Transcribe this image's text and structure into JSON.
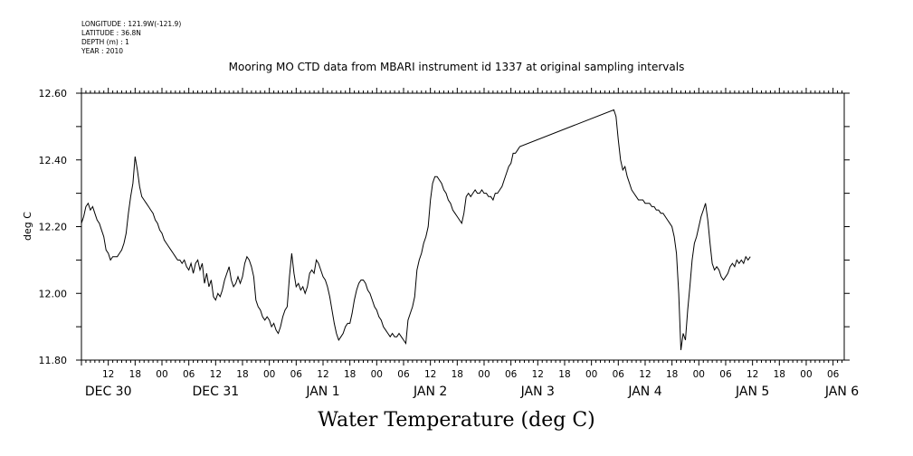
{
  "header": {
    "longitude": "LONGITUDE : 121.9W(-121.9)",
    "latitude": "LATITUDE : 36.8N",
    "depth": "DEPTH (m) : 1",
    "year": "YEAR : 2010"
  },
  "chart_data": {
    "type": "line",
    "title": "Mooring MO CTD data from MBARI instrument id 1337 at original sampling intervals",
    "xlabel": "Water Temperature (deg C)",
    "ylabel": "deg C",
    "ylim": [
      11.8,
      12.6
    ],
    "yticks": [
      "11.80",
      "12.00",
      "12.20",
      "12.40",
      "12.60"
    ],
    "x_units": "hours since 2009-12-29 06:00",
    "xlim": [
      0,
      170.5
    ],
    "hour_ticks": [
      {
        "x": 6,
        "label": "12"
      },
      {
        "x": 12,
        "label": "18"
      },
      {
        "x": 18,
        "label": "00"
      },
      {
        "x": 24,
        "label": "06"
      },
      {
        "x": 30,
        "label": "12"
      },
      {
        "x": 36,
        "label": "18"
      },
      {
        "x": 42,
        "label": "00"
      },
      {
        "x": 48,
        "label": "06"
      },
      {
        "x": 54,
        "label": "12"
      },
      {
        "x": 60,
        "label": "18"
      },
      {
        "x": 66,
        "label": "00"
      },
      {
        "x": 72,
        "label": "06"
      },
      {
        "x": 78,
        "label": "12"
      },
      {
        "x": 84,
        "label": "18"
      },
      {
        "x": 90,
        "label": "00"
      },
      {
        "x": 96,
        "label": "06"
      },
      {
        "x": 102,
        "label": "12"
      },
      {
        "x": 108,
        "label": "18"
      },
      {
        "x": 114,
        "label": "00"
      },
      {
        "x": 120,
        "label": "06"
      },
      {
        "x": 126,
        "label": "12"
      },
      {
        "x": 132,
        "label": "18"
      },
      {
        "x": 138,
        "label": "00"
      },
      {
        "x": 144,
        "label": "06"
      },
      {
        "x": 150,
        "label": "12"
      },
      {
        "x": 156,
        "label": "18"
      },
      {
        "x": 162,
        "label": "00"
      },
      {
        "x": 168,
        "label": "06"
      }
    ],
    "day_labels": [
      {
        "x": 6,
        "label": "DEC 30"
      },
      {
        "x": 30,
        "label": "DEC 31"
      },
      {
        "x": 54,
        "label": "JAN  1"
      },
      {
        "x": 78,
        "label": "JAN  2"
      },
      {
        "x": 102,
        "label": "JAN  3"
      },
      {
        "x": 126,
        "label": "JAN  4"
      },
      {
        "x": 150,
        "label": "JAN  5"
      },
      {
        "x": 170,
        "label": "JAN  6"
      }
    ],
    "series": [
      {
        "color": "#000000",
        "points": [
          [
            0,
            12.21
          ],
          [
            0.5,
            12.23
          ],
          [
            1,
            12.26
          ],
          [
            1.5,
            12.27
          ],
          [
            2,
            12.25
          ],
          [
            2.5,
            12.26
          ],
          [
            3,
            12.24
          ],
          [
            3.5,
            12.22
          ],
          [
            4,
            12.21
          ],
          [
            4.5,
            12.19
          ],
          [
            5,
            12.17
          ],
          [
            5.5,
            12.13
          ],
          [
            6,
            12.12
          ],
          [
            6.5,
            12.1
          ],
          [
            7,
            12.11
          ],
          [
            7.5,
            12.11
          ],
          [
            8,
            12.11
          ],
          [
            8.5,
            12.12
          ],
          [
            9,
            12.13
          ],
          [
            9.5,
            12.15
          ],
          [
            10,
            12.18
          ],
          [
            10.5,
            12.24
          ],
          [
            11,
            12.29
          ],
          [
            11.5,
            12.33
          ],
          [
            12,
            12.41
          ],
          [
            12.5,
            12.37
          ],
          [
            13,
            12.32
          ],
          [
            13.5,
            12.29
          ],
          [
            14,
            12.28
          ],
          [
            14.5,
            12.27
          ],
          [
            15,
            12.26
          ],
          [
            15.5,
            12.25
          ],
          [
            16,
            12.24
          ],
          [
            16.5,
            12.22
          ],
          [
            17,
            12.21
          ],
          [
            17.5,
            12.19
          ],
          [
            18,
            12.18
          ],
          [
            18.5,
            12.16
          ],
          [
            19,
            12.15
          ],
          [
            19.5,
            12.14
          ],
          [
            20,
            12.13
          ],
          [
            20.5,
            12.12
          ],
          [
            21,
            12.11
          ],
          [
            21.5,
            12.1
          ],
          [
            22,
            12.1
          ],
          [
            22.5,
            12.09
          ],
          [
            23,
            12.1
          ],
          [
            23.5,
            12.08
          ],
          [
            24,
            12.07
          ],
          [
            24.5,
            12.09
          ],
          [
            25,
            12.06
          ],
          [
            25.5,
            12.09
          ],
          [
            26,
            12.1
          ],
          [
            26.5,
            12.07
          ],
          [
            27,
            12.09
          ],
          [
            27.5,
            12.03
          ],
          [
            28,
            12.06
          ],
          [
            28.5,
            12.02
          ],
          [
            29,
            12.04
          ],
          [
            29.5,
            11.99
          ],
          [
            30,
            11.98
          ],
          [
            30.5,
            12.0
          ],
          [
            31,
            11.99
          ],
          [
            31.5,
            12.01
          ],
          [
            32,
            12.04
          ],
          [
            32.5,
            12.06
          ],
          [
            33,
            12.08
          ],
          [
            33.5,
            12.04
          ],
          [
            34,
            12.02
          ],
          [
            34.5,
            12.03
          ],
          [
            35,
            12.05
          ],
          [
            35.5,
            12.03
          ],
          [
            36,
            12.05
          ],
          [
            36.5,
            12.09
          ],
          [
            37,
            12.11
          ],
          [
            37.5,
            12.1
          ],
          [
            38,
            12.08
          ],
          [
            38.5,
            12.05
          ],
          [
            39,
            11.98
          ],
          [
            39.5,
            11.96
          ],
          [
            40,
            11.95
          ],
          [
            40.5,
            11.93
          ],
          [
            41,
            11.92
          ],
          [
            41.5,
            11.93
          ],
          [
            42,
            11.92
          ],
          [
            42.5,
            11.9
          ],
          [
            43,
            11.91
          ],
          [
            43.5,
            11.89
          ],
          [
            44,
            11.88
          ],
          [
            44.5,
            11.9
          ],
          [
            45,
            11.93
          ],
          [
            45.5,
            11.95
          ],
          [
            46,
            11.96
          ],
          [
            46.5,
            12.05
          ],
          [
            47,
            12.12
          ],
          [
            47.5,
            12.06
          ],
          [
            48,
            12.02
          ],
          [
            48.5,
            12.03
          ],
          [
            49,
            12.01
          ],
          [
            49.5,
            12.02
          ],
          [
            50,
            12.0
          ],
          [
            50.5,
            12.02
          ],
          [
            51,
            12.06
          ],
          [
            51.5,
            12.07
          ],
          [
            52,
            12.06
          ],
          [
            52.5,
            12.1
          ],
          [
            53,
            12.09
          ],
          [
            53.5,
            12.07
          ],
          [
            54,
            12.05
          ],
          [
            54.5,
            12.04
          ],
          [
            55,
            12.02
          ],
          [
            55.5,
            11.99
          ],
          [
            56,
            11.95
          ],
          [
            56.5,
            11.91
          ],
          [
            57,
            11.88
          ],
          [
            57.5,
            11.86
          ],
          [
            58,
            11.87
          ],
          [
            58.5,
            11.88
          ],
          [
            59,
            11.9
          ],
          [
            59.5,
            11.91
          ],
          [
            60,
            11.91
          ],
          [
            60.5,
            11.94
          ],
          [
            61,
            11.98
          ],
          [
            61.5,
            12.01
          ],
          [
            62,
            12.03
          ],
          [
            62.5,
            12.04
          ],
          [
            63,
            12.04
          ],
          [
            63.5,
            12.03
          ],
          [
            64,
            12.01
          ],
          [
            64.5,
            12.0
          ],
          [
            65,
            11.98
          ],
          [
            65.5,
            11.96
          ],
          [
            66,
            11.95
          ],
          [
            66.5,
            11.93
          ],
          [
            67,
            11.92
          ],
          [
            67.5,
            11.9
          ],
          [
            68,
            11.89
          ],
          [
            68.5,
            11.88
          ],
          [
            69,
            11.87
          ],
          [
            69.5,
            11.88
          ],
          [
            70,
            11.87
          ],
          [
            70.5,
            11.87
          ],
          [
            71,
            11.88
          ],
          [
            71.5,
            11.87
          ],
          [
            72,
            11.86
          ],
          [
            72.5,
            11.85
          ],
          [
            73,
            11.92
          ],
          [
            73.5,
            11.94
          ],
          [
            74,
            11.96
          ],
          [
            74.5,
            11.99
          ],
          [
            75,
            12.07
          ],
          [
            75.5,
            12.1
          ],
          [
            76,
            12.12
          ],
          [
            76.5,
            12.15
          ],
          [
            77,
            12.17
          ],
          [
            77.5,
            12.2
          ],
          [
            78,
            12.28
          ],
          [
            78.5,
            12.33
          ],
          [
            79,
            12.35
          ],
          [
            79.5,
            12.35
          ],
          [
            80,
            12.34
          ],
          [
            80.5,
            12.33
          ],
          [
            81,
            12.31
          ],
          [
            81.5,
            12.3
          ],
          [
            82,
            12.28
          ],
          [
            82.5,
            12.27
          ],
          [
            83,
            12.25
          ],
          [
            83.5,
            12.24
          ],
          [
            84,
            12.23
          ],
          [
            84.5,
            12.22
          ],
          [
            85,
            12.21
          ],
          [
            85.5,
            12.24
          ],
          [
            86,
            12.29
          ],
          [
            86.5,
            12.3
          ],
          [
            87,
            12.29
          ],
          [
            87.5,
            12.3
          ],
          [
            88,
            12.31
          ],
          [
            88.5,
            12.3
          ],
          [
            89,
            12.3
          ],
          [
            89.5,
            12.31
          ],
          [
            90,
            12.3
          ],
          [
            90.5,
            12.3
          ],
          [
            91,
            12.29
          ],
          [
            91.5,
            12.29
          ],
          [
            92,
            12.28
          ],
          [
            92.5,
            12.3
          ],
          [
            93,
            12.3
          ],
          [
            93.5,
            12.31
          ],
          [
            94,
            12.32
          ],
          [
            94.5,
            12.34
          ],
          [
            95,
            12.36
          ],
          [
            95.5,
            12.38
          ],
          [
            96,
            12.39
          ],
          [
            96.5,
            12.42
          ],
          [
            97,
            12.42
          ],
          [
            97.5,
            12.43
          ],
          [
            98,
            12.44
          ],
          [
            119,
            12.55
          ],
          [
            119.5,
            12.53
          ],
          [
            120,
            12.46
          ],
          [
            120.5,
            12.4
          ],
          [
            121,
            12.37
          ],
          [
            121.5,
            12.38
          ],
          [
            122,
            12.35
          ],
          [
            122.5,
            12.33
          ],
          [
            123,
            12.31
          ],
          [
            123.5,
            12.3
          ],
          [
            124,
            12.29
          ],
          [
            124.5,
            12.28
          ],
          [
            125,
            12.28
          ],
          [
            125.5,
            12.28
          ],
          [
            126,
            12.27
          ],
          [
            126.5,
            12.27
          ],
          [
            127,
            12.27
          ],
          [
            127.5,
            12.26
          ],
          [
            128,
            12.26
          ],
          [
            128.5,
            12.25
          ],
          [
            129,
            12.25
          ],
          [
            129.5,
            12.24
          ],
          [
            130,
            12.24
          ],
          [
            130.5,
            12.23
          ],
          [
            131,
            12.22
          ],
          [
            131.5,
            12.21
          ],
          [
            132,
            12.2
          ],
          [
            132.5,
            12.17
          ],
          [
            133,
            12.12
          ],
          [
            133.5,
            12.0
          ],
          [
            134,
            11.83
          ],
          [
            134.5,
            11.88
          ],
          [
            135,
            11.86
          ],
          [
            135.5,
            11.95
          ],
          [
            136,
            12.02
          ],
          [
            136.5,
            12.1
          ],
          [
            137,
            12.15
          ],
          [
            137.5,
            12.17
          ],
          [
            138,
            12.2
          ],
          [
            138.5,
            12.23
          ],
          [
            139,
            12.25
          ],
          [
            139.5,
            12.27
          ],
          [
            140,
            12.22
          ],
          [
            140.5,
            12.15
          ],
          [
            141,
            12.09
          ],
          [
            141.5,
            12.07
          ],
          [
            142,
            12.08
          ],
          [
            142.5,
            12.07
          ],
          [
            143,
            12.05
          ],
          [
            143.5,
            12.04
          ],
          [
            144,
            12.05
          ],
          [
            144.5,
            12.06
          ],
          [
            145,
            12.08
          ],
          [
            145.5,
            12.09
          ],
          [
            146,
            12.08
          ],
          [
            146.5,
            12.1
          ],
          [
            147,
            12.09
          ],
          [
            147.5,
            12.1
          ],
          [
            148,
            12.09
          ],
          [
            148.5,
            12.11
          ],
          [
            149,
            12.1
          ],
          [
            149.5,
            12.11
          ]
        ]
      }
    ],
    "grid": false,
    "legend": "none"
  }
}
